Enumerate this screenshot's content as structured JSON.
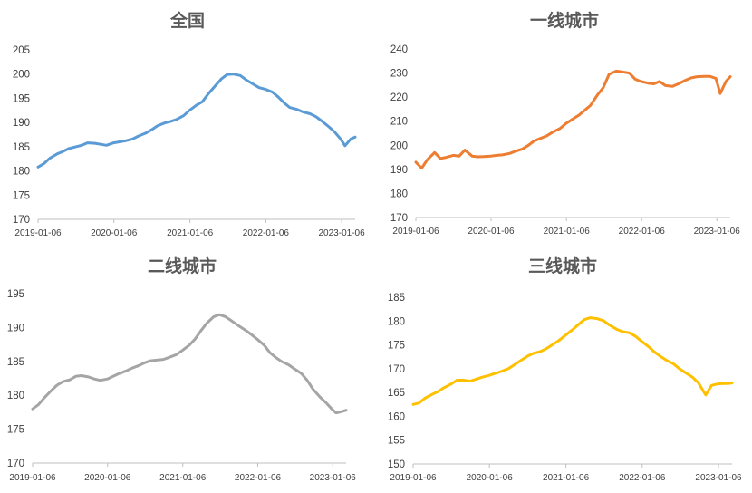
{
  "chart_data": [
    {
      "type": "line",
      "title": "全国",
      "color": "#5B9BD5",
      "ylim": [
        170,
        205
      ],
      "yticks": [
        170,
        175,
        180,
        185,
        190,
        195,
        200,
        205
      ],
      "xticks": [
        "2019-01-06",
        "2020-01-06",
        "2021-01-06",
        "2022-01-06",
        "2023-01-06"
      ],
      "xlim": [
        "2019-01-06",
        "2023-03-12"
      ],
      "series": [
        {
          "x": [
            "2019-01-06",
            "2019-02-03",
            "2019-03-03",
            "2019-04-07",
            "2019-05-05",
            "2019-06-02",
            "2019-07-07",
            "2019-08-04",
            "2019-09-01",
            "2019-10-06",
            "2019-11-03",
            "2019-12-01",
            "2020-01-05",
            "2020-02-02",
            "2020-03-01",
            "2020-04-05",
            "2020-05-03",
            "2020-06-07",
            "2020-07-05",
            "2020-08-02",
            "2020-09-06",
            "2020-10-04",
            "2020-11-01",
            "2020-12-06",
            "2021-01-03",
            "2021-02-07",
            "2021-03-07",
            "2021-04-04",
            "2021-05-02",
            "2021-06-06",
            "2021-07-04",
            "2021-08-01",
            "2021-09-05",
            "2021-10-03",
            "2021-11-07",
            "2021-12-05",
            "2022-01-02",
            "2022-02-06",
            "2022-03-06",
            "2022-04-03",
            "2022-05-01",
            "2022-06-05",
            "2022-07-03",
            "2022-08-07",
            "2022-09-04",
            "2022-10-02",
            "2022-11-06",
            "2022-12-04",
            "2023-01-01",
            "2023-01-22",
            "2023-02-19",
            "2023-03-12"
          ],
          "y": [
            180.8,
            181.5,
            182.6,
            183.5,
            184.0,
            184.6,
            185.0,
            185.3,
            185.8,
            185.7,
            185.5,
            185.3,
            185.8,
            186.0,
            186.2,
            186.6,
            187.2,
            187.8,
            188.5,
            189.3,
            189.9,
            190.2,
            190.6,
            191.4,
            192.5,
            193.6,
            194.3,
            195.9,
            197.3,
            199.0,
            199.9,
            200.0,
            199.7,
            198.8,
            197.9,
            197.2,
            196.9,
            196.3,
            195.3,
            194.1,
            193.1,
            192.7,
            192.2,
            191.8,
            191.2,
            190.3,
            189.1,
            188.0,
            186.6,
            185.2,
            186.6,
            187.0
          ]
        }
      ]
    },
    {
      "type": "line",
      "title": "一线城市",
      "color": "#ED7D31",
      "ylim": [
        170,
        240
      ],
      "yticks": [
        170,
        180,
        190,
        200,
        210,
        220,
        230,
        240
      ],
      "xticks": [
        "2019-01-06",
        "2020-01-06",
        "2021-01-06",
        "2022-01-06",
        "2023-01-06"
      ],
      "xlim": [
        "2019-01-06",
        "2023-03-12"
      ],
      "series": [
        {
          "x": [
            "2019-01-06",
            "2019-02-03",
            "2019-03-03",
            "2019-04-07",
            "2019-05-05",
            "2019-06-02",
            "2019-07-07",
            "2019-08-04",
            "2019-09-01",
            "2019-10-06",
            "2019-11-03",
            "2019-12-01",
            "2020-01-05",
            "2020-02-02",
            "2020-03-01",
            "2020-04-05",
            "2020-05-03",
            "2020-06-07",
            "2020-07-05",
            "2020-08-02",
            "2020-09-06",
            "2020-10-04",
            "2020-11-01",
            "2020-12-06",
            "2021-01-03",
            "2021-02-07",
            "2021-03-07",
            "2021-04-04",
            "2021-05-02",
            "2021-06-06",
            "2021-07-04",
            "2021-08-01",
            "2021-09-05",
            "2021-10-03",
            "2021-11-07",
            "2021-12-05",
            "2022-01-02",
            "2022-02-06",
            "2022-03-06",
            "2022-04-03",
            "2022-05-01",
            "2022-06-05",
            "2022-07-03",
            "2022-08-07",
            "2022-09-04",
            "2022-10-02",
            "2022-11-06",
            "2022-12-04",
            "2023-01-01",
            "2023-01-22",
            "2023-02-19",
            "2023-03-12"
          ],
          "y": [
            193.0,
            190.5,
            194.0,
            197.0,
            194.5,
            195.0,
            195.8,
            195.5,
            198.0,
            195.5,
            195.2,
            195.3,
            195.5,
            195.8,
            196.0,
            196.6,
            197.5,
            198.5,
            200.0,
            201.8,
            203.0,
            204.0,
            205.5,
            207.0,
            209.0,
            211.0,
            212.5,
            214.5,
            216.5,
            221.0,
            224.0,
            229.5,
            230.8,
            230.5,
            230.0,
            227.5,
            226.5,
            225.8,
            225.5,
            226.5,
            224.8,
            224.5,
            225.5,
            227.0,
            228.0,
            228.5,
            228.6,
            228.6,
            227.8,
            221.5,
            226.5,
            228.5
          ]
        }
      ]
    },
    {
      "type": "line",
      "title": "二线城市",
      "color": "#A5A5A5",
      "ylim": [
        170,
        195
      ],
      "yticks": [
        170,
        175,
        180,
        185,
        190,
        195
      ],
      "xticks": [
        "2019-01-06",
        "2020-01-06",
        "2021-01-06",
        "2022-01-06",
        "2023-01-06"
      ],
      "xlim": [
        "2019-01-06",
        "2023-03-12"
      ],
      "series": [
        {
          "x": [
            "2019-01-06",
            "2019-02-03",
            "2019-03-03",
            "2019-04-07",
            "2019-05-05",
            "2019-06-02",
            "2019-07-07",
            "2019-08-04",
            "2019-09-01",
            "2019-10-06",
            "2019-11-03",
            "2019-12-01",
            "2020-01-05",
            "2020-02-02",
            "2020-03-01",
            "2020-04-05",
            "2020-05-03",
            "2020-06-07",
            "2020-07-05",
            "2020-08-02",
            "2020-09-06",
            "2020-10-04",
            "2020-11-01",
            "2020-12-06",
            "2021-01-03",
            "2021-02-07",
            "2021-03-07",
            "2021-04-04",
            "2021-05-02",
            "2021-06-06",
            "2021-07-04",
            "2021-08-01",
            "2021-09-05",
            "2021-10-03",
            "2021-11-07",
            "2021-12-05",
            "2022-01-02",
            "2022-02-06",
            "2022-03-06",
            "2022-04-03",
            "2022-05-01",
            "2022-06-05",
            "2022-07-03",
            "2022-08-07",
            "2022-09-04",
            "2022-10-02",
            "2022-11-06",
            "2022-12-04",
            "2023-01-01",
            "2023-01-22",
            "2023-02-19",
            "2023-03-12"
          ],
          "y": [
            178.0,
            178.6,
            179.6,
            180.7,
            181.5,
            182.0,
            182.3,
            182.8,
            182.9,
            182.7,
            182.4,
            182.2,
            182.4,
            182.8,
            183.2,
            183.6,
            184.0,
            184.4,
            184.8,
            185.1,
            185.2,
            185.3,
            185.6,
            186.0,
            186.6,
            187.4,
            188.3,
            189.5,
            190.6,
            191.6,
            191.9,
            191.6,
            190.9,
            190.3,
            189.6,
            189.0,
            188.3,
            187.4,
            186.3,
            185.6,
            185.0,
            184.5,
            183.9,
            183.2,
            182.2,
            180.9,
            179.7,
            178.9,
            178.0,
            177.4,
            177.6,
            177.8
          ]
        }
      ]
    },
    {
      "type": "line",
      "title": "三线城市",
      "color": "#FFC000",
      "ylim": [
        150,
        185
      ],
      "yticks": [
        150,
        155,
        160,
        165,
        170,
        175,
        180,
        185
      ],
      "xticks": [
        "2019-01-06",
        "2020-01-06",
        "2021-01-06",
        "2022-01-06",
        "2023-01-06"
      ],
      "xlim": [
        "2019-01-06",
        "2023-03-12"
      ],
      "series": [
        {
          "x": [
            "2019-01-06",
            "2019-02-03",
            "2019-03-03",
            "2019-04-07",
            "2019-05-05",
            "2019-06-02",
            "2019-07-07",
            "2019-08-04",
            "2019-09-01",
            "2019-10-06",
            "2019-11-03",
            "2019-12-01",
            "2020-01-05",
            "2020-02-02",
            "2020-03-01",
            "2020-04-05",
            "2020-05-03",
            "2020-06-07",
            "2020-07-05",
            "2020-08-02",
            "2020-09-06",
            "2020-10-04",
            "2020-11-01",
            "2020-12-06",
            "2021-01-03",
            "2021-02-07",
            "2021-03-07",
            "2021-04-04",
            "2021-05-02",
            "2021-06-06",
            "2021-07-04",
            "2021-08-01",
            "2021-09-05",
            "2021-10-03",
            "2021-11-07",
            "2021-12-05",
            "2022-01-02",
            "2022-02-06",
            "2022-03-06",
            "2022-04-03",
            "2022-05-01",
            "2022-06-05",
            "2022-07-03",
            "2022-08-07",
            "2022-09-04",
            "2022-10-02",
            "2022-11-06",
            "2022-12-04",
            "2023-01-01",
            "2023-01-22",
            "2023-02-19",
            "2023-03-12"
          ],
          "y": [
            162.5,
            162.8,
            163.8,
            164.6,
            165.2,
            166.0,
            166.8,
            167.6,
            167.6,
            167.4,
            167.8,
            168.2,
            168.6,
            169.0,
            169.4,
            170.0,
            170.8,
            171.8,
            172.6,
            173.2,
            173.6,
            174.2,
            175.0,
            176.0,
            177.0,
            178.2,
            179.3,
            180.3,
            180.7,
            180.5,
            180.1,
            179.2,
            178.3,
            177.8,
            177.5,
            176.8,
            175.8,
            174.6,
            173.5,
            172.6,
            171.8,
            171.0,
            170.0,
            169.0,
            168.2,
            167.0,
            164.5,
            166.5,
            166.8,
            166.9,
            166.9,
            167.0
          ]
        }
      ]
    }
  ]
}
